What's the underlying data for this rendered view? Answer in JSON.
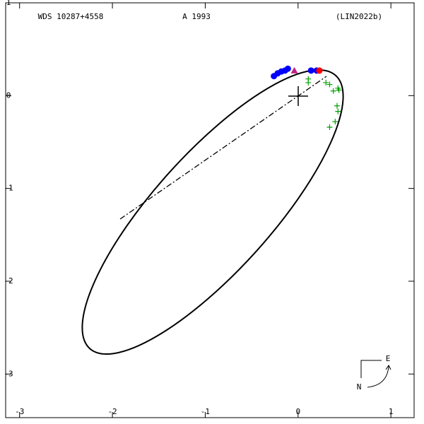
{
  "chart_data": {
    "type": "scatter",
    "title": "WDS 10287+4558",
    "subtitle": "A  1993",
    "reference": "(LIN2022b)",
    "compass": {
      "east": "E",
      "north": "N"
    },
    "xlim": [
      -3.15,
      1.25
    ],
    "ylim": [
      -3.47,
      1.0
    ],
    "xticks": [
      -3,
      -2,
      -1,
      0,
      1
    ],
    "yticks": [
      -3,
      -2,
      -1,
      0,
      1
    ],
    "grid": false,
    "series": [
      {
        "color": "#0000ff",
        "marker": "dot",
        "x": [
          -0.26,
          -0.22,
          -0.18,
          -0.14,
          -0.11,
          0.14,
          0.2
        ],
        "values": [
          0.21,
          0.24,
          0.26,
          0.27,
          0.29,
          0.27,
          0.27
        ]
      },
      {
        "color": "#ff0000",
        "marker": "dot",
        "x": [
          0.23
        ],
        "values": [
          0.27
        ]
      },
      {
        "color": "#c02080",
        "marker": "triangle",
        "x": [
          -0.04
        ],
        "values": [
          0.27
        ]
      },
      {
        "color": "#00a000",
        "marker": "plus",
        "x": [
          0.11,
          0.11,
          0.3,
          0.34,
          0.38,
          0.43,
          0.44,
          0.42,
          0.43,
          0.4,
          0.34
        ],
        "values": [
          0.18,
          0.14,
          0.14,
          0.12,
          0.05,
          0.08,
          0.06,
          -0.11,
          -0.17,
          -0.28,
          -0.34
        ]
      }
    ]
  }
}
